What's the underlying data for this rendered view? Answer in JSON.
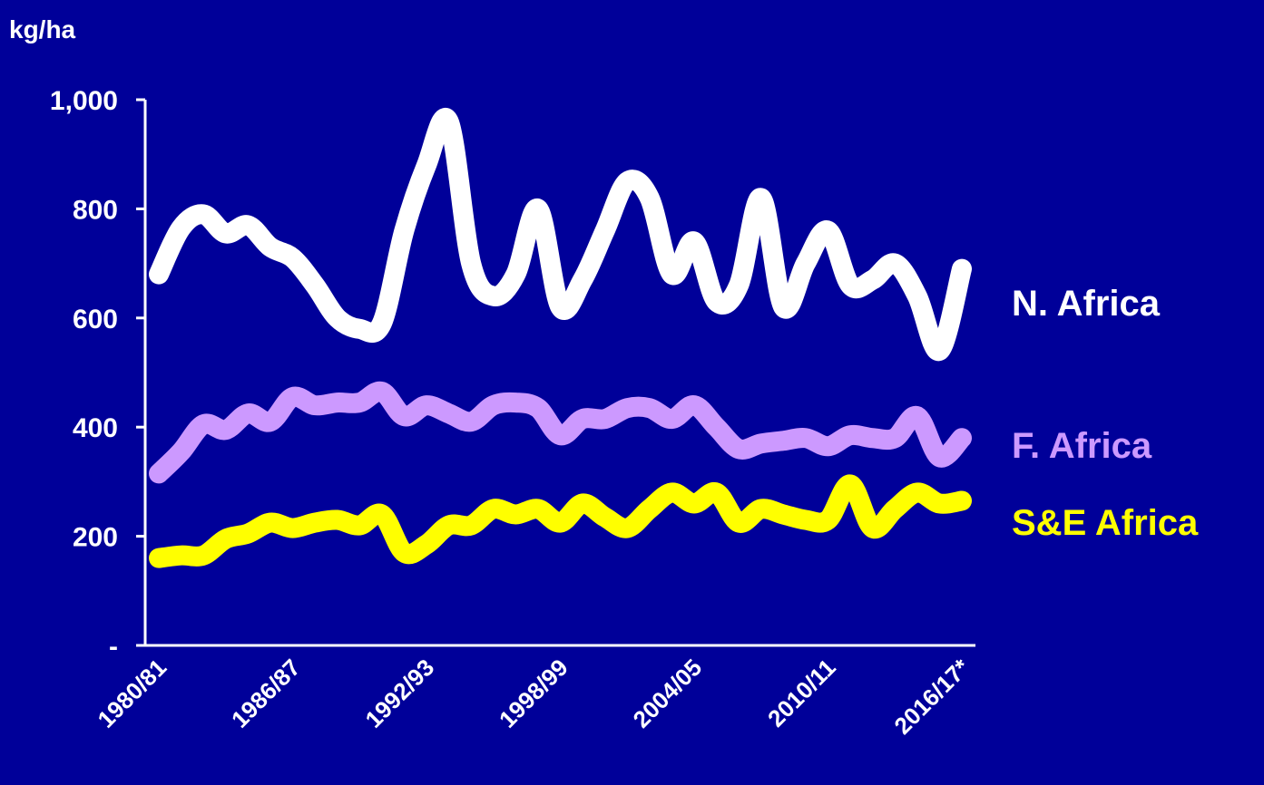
{
  "chart_data": {
    "type": "line",
    "title": "",
    "ylabel": "kg/ha",
    "ylim": [
      0,
      1000
    ],
    "yticks": [
      {
        "value": 0,
        "label": "-"
      },
      {
        "value": 200,
        "label": "200"
      },
      {
        "value": 400,
        "label": "400"
      },
      {
        "value": 600,
        "label": "600"
      },
      {
        "value": 800,
        "label": "800"
      },
      {
        "value": 1000,
        "label": "1,000"
      }
    ],
    "categories": [
      "1980/81",
      "1981/82",
      "1982/83",
      "1983/84",
      "1984/85",
      "1985/86",
      "1986/87",
      "1987/88",
      "1988/89",
      "1989/90",
      "1990/91",
      "1991/92",
      "1992/93",
      "1993/94",
      "1994/95",
      "1995/96",
      "1996/97",
      "1997/98",
      "1998/99",
      "1999/00",
      "2000/01",
      "2001/02",
      "2002/03",
      "2003/04",
      "2004/05",
      "2005/06",
      "2006/07",
      "2007/08",
      "2008/09",
      "2009/10",
      "2010/11",
      "2011/12",
      "2012/13",
      "2013/14",
      "2014/15",
      "2015/16",
      "2016/17*"
    ],
    "xtick_labels": [
      "1980/81",
      "1986/87",
      "1992/93",
      "1998/99",
      "2004/05",
      "2010/11",
      "2016/17*"
    ],
    "xtick_indices": [
      0,
      6,
      12,
      18,
      24,
      30,
      36
    ],
    "series": [
      {
        "name": "N. Africa",
        "color": "#ffffff",
        "values": [
          680,
          765,
          790,
          755,
          770,
          730,
          710,
          660,
          600,
          580,
          590,
          760,
          880,
          960,
          700,
          640,
          680,
          800,
          620,
          670,
          760,
          850,
          820,
          680,
          740,
          630,
          660,
          820,
          620,
          700,
          760,
          660,
          670,
          700,
          640,
          540,
          690
        ]
      },
      {
        "name": "F. Africa",
        "color": "#cc99ff",
        "values": [
          315,
          355,
          405,
          395,
          425,
          410,
          455,
          440,
          445,
          445,
          465,
          420,
          440,
          425,
          410,
          440,
          445,
          435,
          385,
          415,
          415,
          435,
          435,
          415,
          440,
          400,
          360,
          370,
          375,
          380,
          365,
          385,
          380,
          380,
          420,
          345,
          380
        ]
      },
      {
        "name": "S&E Africa",
        "color": "#ffff00",
        "values": [
          160,
          165,
          165,
          195,
          205,
          225,
          215,
          225,
          230,
          220,
          240,
          170,
          185,
          220,
          220,
          250,
          240,
          250,
          225,
          260,
          235,
          215,
          250,
          280,
          260,
          280,
          225,
          250,
          240,
          230,
          230,
          295,
          215,
          250,
          280,
          260,
          265
        ]
      }
    ]
  }
}
